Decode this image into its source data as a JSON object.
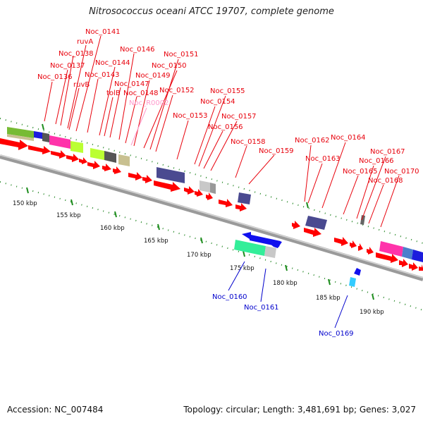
{
  "title": "Nitrosococcus oceani ATCC 19707, complete genome",
  "accession": "Accession: NC_007484",
  "summary": "Topology: circular; Length: 3,481,691 bp; Genes: 3,027",
  "colors": {
    "forward_label": "#e8000b",
    "reverse_label": "#0000cc",
    "rna_label": "#ff99cc",
    "cds": "#ff0000",
    "backbone": "#888888"
  },
  "scale_labels": [
    "150 kbp",
    "155 kbp",
    "160 kbp",
    "165 kbp",
    "170 kbp",
    "175 kbp",
    "180 kbp",
    "185 kbp",
    "190 kbp"
  ],
  "gene_labels": [
    {
      "text": "Noc_0141",
      "strand": "forward"
    },
    {
      "text": "ruvA",
      "strand": "forward"
    },
    {
      "text": "Noc_0138",
      "strand": "forward"
    },
    {
      "text": "Noc_0137",
      "strand": "forward"
    },
    {
      "text": "Noc_0136",
      "strand": "forward"
    },
    {
      "text": "ruvB",
      "strand": "forward"
    },
    {
      "text": "Noc_0146",
      "strand": "forward"
    },
    {
      "text": "Noc_0144",
      "strand": "forward"
    },
    {
      "text": "Noc_0143",
      "strand": "forward"
    },
    {
      "text": "Noc_0147",
      "strand": "forward"
    },
    {
      "text": "tolB",
      "strand": "forward"
    },
    {
      "text": "Noc_0148",
      "strand": "forward"
    },
    {
      "text": "Noc_0149",
      "strand": "forward"
    },
    {
      "text": "Noc_0151",
      "strand": "forward"
    },
    {
      "text": "Noc_0150",
      "strand": "forward"
    },
    {
      "text": "Noc_0152",
      "strand": "forward"
    },
    {
      "text": "Noc_R0002",
      "strand": "rna"
    },
    {
      "text": "Noc_0153",
      "strand": "forward"
    },
    {
      "text": "Noc_0155",
      "strand": "forward"
    },
    {
      "text": "Noc_0154",
      "strand": "forward"
    },
    {
      "text": "Noc_0157",
      "strand": "forward"
    },
    {
      "text": "Noc_0156",
      "strand": "forward"
    },
    {
      "text": "Noc_0158",
      "strand": "forward"
    },
    {
      "text": "Noc_0159",
      "strand": "forward"
    },
    {
      "text": "Noc_0162",
      "strand": "forward"
    },
    {
      "text": "Noc_0164",
      "strand": "forward"
    },
    {
      "text": "Noc_0163",
      "strand": "forward"
    },
    {
      "text": "Noc_0167",
      "strand": "forward"
    },
    {
      "text": "Noc_0166",
      "strand": "forward"
    },
    {
      "text": "Noc_0165",
      "strand": "forward"
    },
    {
      "text": "Noc_0170",
      "strand": "forward"
    },
    {
      "text": "Noc_0168",
      "strand": "forward"
    },
    {
      "text": "Noc_0160",
      "strand": "reverse"
    },
    {
      "text": "Noc_0161",
      "strand": "reverse"
    },
    {
      "text": "Noc_0169",
      "strand": "reverse"
    }
  ]
}
